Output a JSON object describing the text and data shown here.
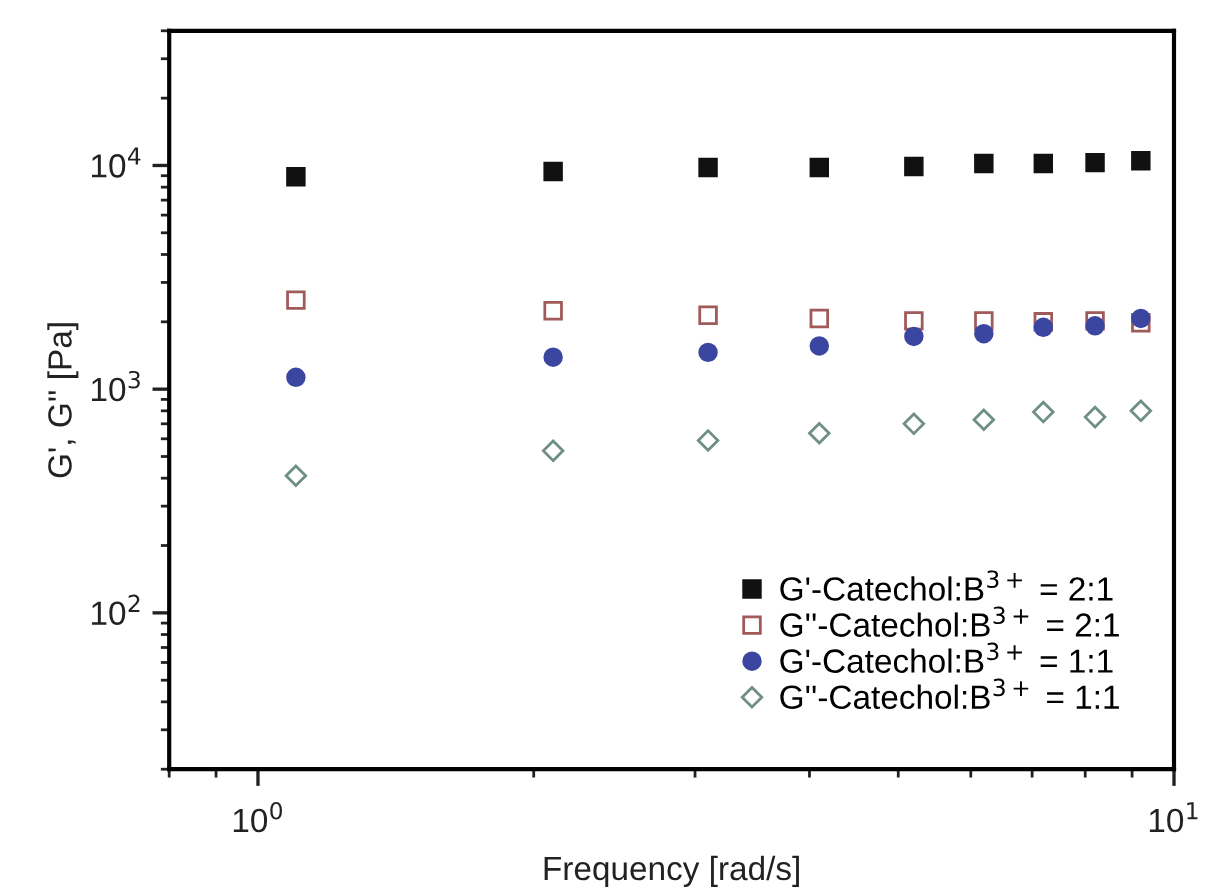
{
  "chart_data": {
    "type": "scatter",
    "xlabel": "Frequency [rad/s]",
    "ylabel": "G', G'' [Pa]",
    "log": "xy",
    "xlim": [
      0.8,
      10
    ],
    "ylim": [
      20,
      40000
    ],
    "xticks": [
      {
        "value": 1,
        "label": "10$^{0}$"
      },
      {
        "value": 10,
        "label": "10$^{1}$"
      }
    ],
    "yticks": [
      {
        "value": 100,
        "label": "10$^{2}$"
      },
      {
        "value": 1000,
        "label": "10$^{3}$"
      },
      {
        "value": 10000,
        "label": "10$^{4}$"
      }
    ],
    "x": [
      1.1,
      2.1,
      3.1,
      4.1,
      5.2,
      6.2,
      7.2,
      8.2,
      9.2
    ],
    "legend": "bottom right",
    "grid": false,
    "series": [
      {
        "name": "G'-Catechol:B$^{3+}$ = 2:1",
        "color": "#111111",
        "marker": "square",
        "values": [
          8900,
          9400,
          9800,
          9800,
          9900,
          10200,
          10200,
          10300,
          10500
        ]
      },
      {
        "name": "G''-Catechol:B$^{3+}$ = 2:1",
        "color": "#a05a5a",
        "marker": "square",
        "values": [
          2500,
          2240,
          2140,
          2070,
          2020,
          2020,
          2000,
          2020,
          1980
        ]
      },
      {
        "name": "G'-Catechol:B$^{3+}$ = 1:1",
        "color": "#3b46a0",
        "marker": "circle",
        "values": [
          1130,
          1390,
          1460,
          1560,
          1720,
          1770,
          1890,
          1920,
          2070
        ]
      },
      {
        "name": "G''-Catechol:B$^{3+}$ = 1:1",
        "color": "#6f8f84",
        "marker": "diamond",
        "values": [
          410,
          530,
          590,
          635,
          700,
          730,
          790,
          750,
          800
        ]
      }
    ]
  }
}
